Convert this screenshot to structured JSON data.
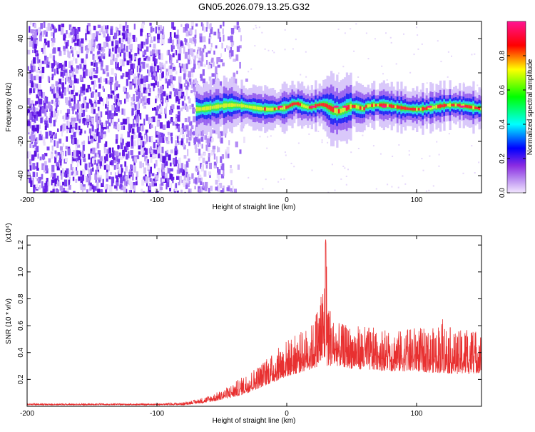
{
  "page": {
    "title": "GN05.2026.079.13.25.G32"
  },
  "chart_data": [
    {
      "type": "heatmap",
      "title": "GN05.2026.079.13.25.G32",
      "xlabel": "Height of straight line (km)",
      "ylabel": "Frequency (Hz)",
      "xlim": [
        -200,
        150
      ],
      "ylim": [
        -50,
        50
      ],
      "x_ticks": [
        -200,
        -100,
        0,
        100
      ],
      "y_ticks": [
        -40,
        -20,
        0,
        20,
        40
      ],
      "colorbar": {
        "label": "Normalized spectral amplitude",
        "range": [
          0.0,
          1.0
        ],
        "ticks": [
          0.0,
          0.2,
          0.4,
          0.6,
          0.8
        ],
        "colormap": [
          "#f2e6ff",
          "#8a2be2",
          "#0000ff",
          "#00ffff",
          "#00ff00",
          "#ffff00",
          "#ff0000",
          "#ff1493"
        ]
      },
      "regions": [
        {
          "x_range": [
            -200,
            -70
          ],
          "description": "broadband noise",
          "amplitude": 0.15
        },
        {
          "x_range": [
            -70,
            150
          ],
          "center_freq": 0,
          "amplitude": 0.9
        }
      ]
    },
    {
      "type": "line",
      "xlabel": "Height of straight line (km)",
      "ylabel": "SNR (10 * v/v)",
      "y_multiplier": "(x10⁴)",
      "xlim": [
        -200,
        150
      ],
      "ylim": [
        0,
        1.27
      ],
      "x_ticks": [
        -200,
        -100,
        0,
        100
      ],
      "y_ticks": [
        0.2,
        0.4,
        0.6,
        0.8,
        1.0,
        1.2
      ],
      "series": [
        {
          "color": "#e83030",
          "x": [
            -200,
            -150,
            -100,
            -80,
            -70,
            -60,
            -50,
            -40,
            -30,
            -20,
            -10,
            0,
            10,
            20,
            25,
            28,
            30,
            32,
            35,
            40,
            50,
            60,
            70,
            80,
            90,
            100,
            110,
            120,
            130,
            140,
            150
          ],
          "env": [
            0.02,
            0.02,
            0.02,
            0.03,
            0.05,
            0.08,
            0.12,
            0.18,
            0.25,
            0.32,
            0.4,
            0.5,
            0.55,
            0.62,
            0.8,
            0.95,
            1.25,
            0.85,
            0.65,
            0.62,
            0.6,
            0.6,
            0.58,
            0.58,
            0.56,
            0.6,
            0.56,
            0.65,
            0.55,
            0.6,
            0.55
          ],
          "base": [
            0.01,
            0.01,
            0.01,
            0.01,
            0.02,
            0.03,
            0.05,
            0.07,
            0.1,
            0.14,
            0.18,
            0.22,
            0.25,
            0.28,
            0.3,
            0.3,
            0.3,
            0.3,
            0.3,
            0.3,
            0.28,
            0.27,
            0.27,
            0.26,
            0.26,
            0.26,
            0.25,
            0.25,
            0.24,
            0.24,
            0.25
          ]
        }
      ]
    }
  ]
}
